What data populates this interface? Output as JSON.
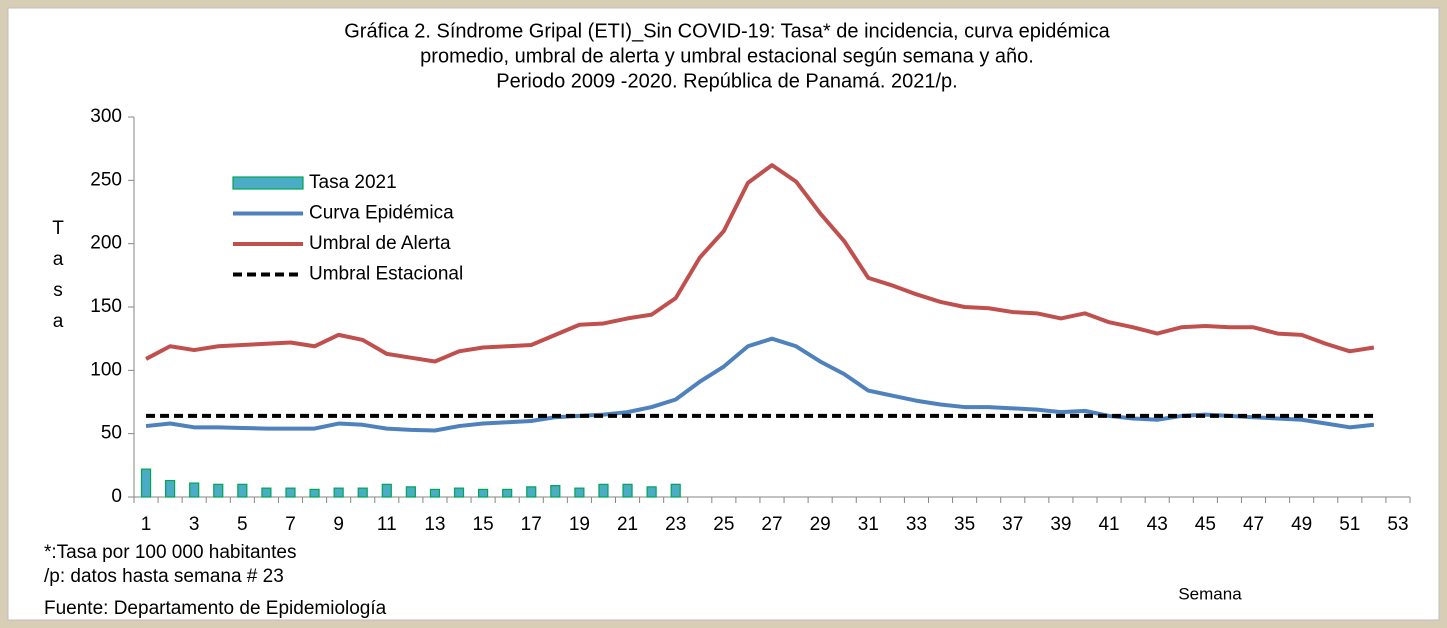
{
  "chart_data": {
    "type": "combo",
    "title": [
      "Gráfica 2. Síndrome Gripal (ETI)_Sin COVID-19: Tasa* de incidencia, curva epidémica",
      "promedio, umbral de alerta y umbral estacional según semana y año.",
      "Periodo 2009 -2020.  República de Panamá. 2021/p."
    ],
    "ylabel": "Tasa",
    "xlabel": "Semana",
    "notes": [
      "*:Tasa por 100 000 habitantes",
      "/p: datos hasta semana # 23",
      "Fuente: Departamento de Epidemiología"
    ],
    "categories": [
      1,
      null,
      3,
      null,
      5,
      null,
      7,
      null,
      9,
      null,
      11,
      null,
      13,
      null,
      15,
      null,
      17,
      null,
      19,
      null,
      21,
      null,
      23,
      null,
      25,
      null,
      27,
      null,
      29,
      null,
      31,
      null,
      33,
      null,
      35,
      null,
      37,
      null,
      39,
      null,
      41,
      null,
      43,
      null,
      45,
      null,
      47,
      null,
      49,
      null,
      51,
      null,
      53
    ],
    "ylim": [
      0,
      300
    ],
    "yticks": [
      0,
      50,
      100,
      150,
      200,
      250,
      300
    ],
    "grid": false,
    "legend": "upper left",
    "series": [
      {
        "name": "Tasa 2021",
        "type": "bar",
        "color": "#4bacc6",
        "edge": "#00a651",
        "values": [
          22,
          13,
          11,
          10,
          10,
          7,
          7,
          6,
          7,
          7,
          10,
          8,
          6,
          7,
          6,
          6,
          8,
          9,
          7,
          10,
          10,
          8,
          10,
          null,
          null,
          null,
          null,
          null,
          null,
          null,
          null,
          null,
          null,
          null,
          null,
          null,
          null,
          null,
          null,
          null,
          null,
          null,
          null,
          null,
          null,
          null,
          null,
          null,
          null,
          null,
          null,
          null,
          null
        ]
      },
      {
        "name": "Curva Epidémica",
        "type": "line",
        "color": "#4f81bd",
        "dashed": false,
        "values": [
          56,
          58,
          55,
          55,
          54.5,
          54,
          54,
          54,
          58,
          57,
          54,
          53,
          52.5,
          56,
          58,
          59,
          60,
          63,
          64,
          65,
          67,
          71,
          77,
          91,
          103,
          119,
          125,
          119,
          107,
          97,
          84,
          80,
          76,
          73,
          71,
          71,
          70,
          69,
          67,
          68,
          64,
          62,
          61,
          64,
          65,
          64,
          63,
          62,
          61,
          58,
          55,
          57,
          null
        ]
      },
      {
        "name": "Umbral de Alerta",
        "type": "line",
        "color": "#c0504d",
        "dashed": false,
        "values": [
          109,
          119,
          116,
          119,
          120,
          121,
          122,
          119,
          128,
          124,
          113,
          110,
          107,
          115,
          118,
          119,
          120,
          128,
          136,
          137,
          141,
          144,
          157,
          189,
          210,
          248,
          262,
          249,
          224,
          202,
          173,
          167,
          160,
          154,
          150,
          149,
          146,
          145,
          141,
          145,
          138,
          134,
          129,
          134,
          135,
          134,
          134,
          129,
          128,
          121,
          115,
          118,
          null
        ]
      },
      {
        "name": "Umbral Estacional",
        "type": "line",
        "color": "#000000",
        "dashed": true,
        "values": [
          64,
          64,
          64,
          64,
          64,
          64,
          64,
          64,
          64,
          64,
          64,
          64,
          64,
          64,
          64,
          64,
          64,
          64,
          64,
          64,
          64,
          64,
          64,
          64,
          64,
          64,
          64,
          64,
          64,
          64,
          64,
          64,
          64,
          64,
          64,
          64,
          64,
          64,
          64,
          64,
          64,
          64,
          64,
          64,
          64,
          64,
          64,
          64,
          64,
          64,
          64,
          64,
          null
        ]
      }
    ]
  }
}
